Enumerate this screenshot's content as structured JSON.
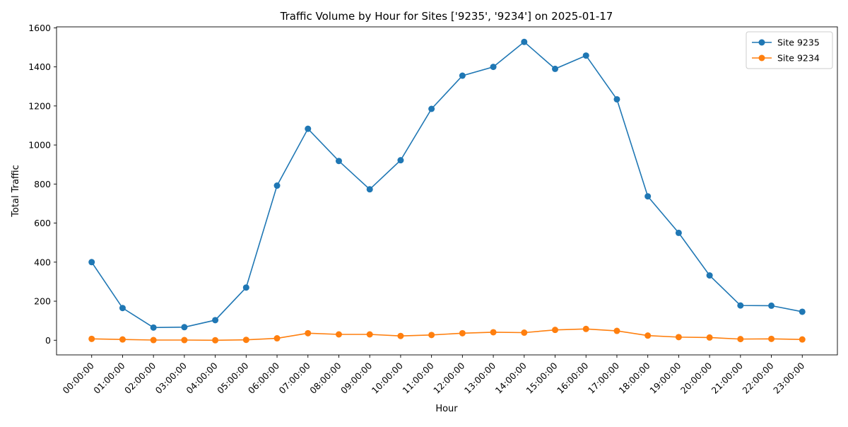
{
  "chart_data": {
    "type": "line",
    "title": "Traffic Volume by Hour for Sites ['9235', '9234'] on 2025-01-17",
    "xlabel": "Hour",
    "ylabel": "Total Traffic",
    "ylim": [
      -75,
      1605
    ],
    "yticks": [
      0,
      200,
      400,
      600,
      800,
      1000,
      1200,
      1400,
      1600
    ],
    "grid": false,
    "legend_position": "top-right",
    "categories": [
      "00:00:00",
      "01:00:00",
      "02:00:00",
      "03:00:00",
      "04:00:00",
      "05:00:00",
      "06:00:00",
      "07:00:00",
      "08:00:00",
      "09:00:00",
      "10:00:00",
      "11:00:00",
      "12:00:00",
      "13:00:00",
      "14:00:00",
      "15:00:00",
      "16:00:00",
      "17:00:00",
      "18:00:00",
      "19:00:00",
      "20:00:00",
      "21:00:00",
      "22:00:00",
      "23:00:00"
    ],
    "series": [
      {
        "name": "Site 9235",
        "color": "#1f77b4",
        "values": [
          400,
          165,
          65,
          67,
          103,
          270,
          792,
          1083,
          918,
          773,
          922,
          1185,
          1355,
          1400,
          1528,
          1390,
          1458,
          1234,
          737,
          550,
          332,
          178,
          177,
          146
        ]
      },
      {
        "name": "Site 9234",
        "color": "#ff7f0e",
        "values": [
          7,
          4,
          1,
          1,
          0,
          2,
          10,
          36,
          30,
          30,
          22,
          27,
          36,
          41,
          39,
          53,
          58,
          48,
          24,
          16,
          14,
          6,
          7,
          4
        ]
      }
    ]
  }
}
